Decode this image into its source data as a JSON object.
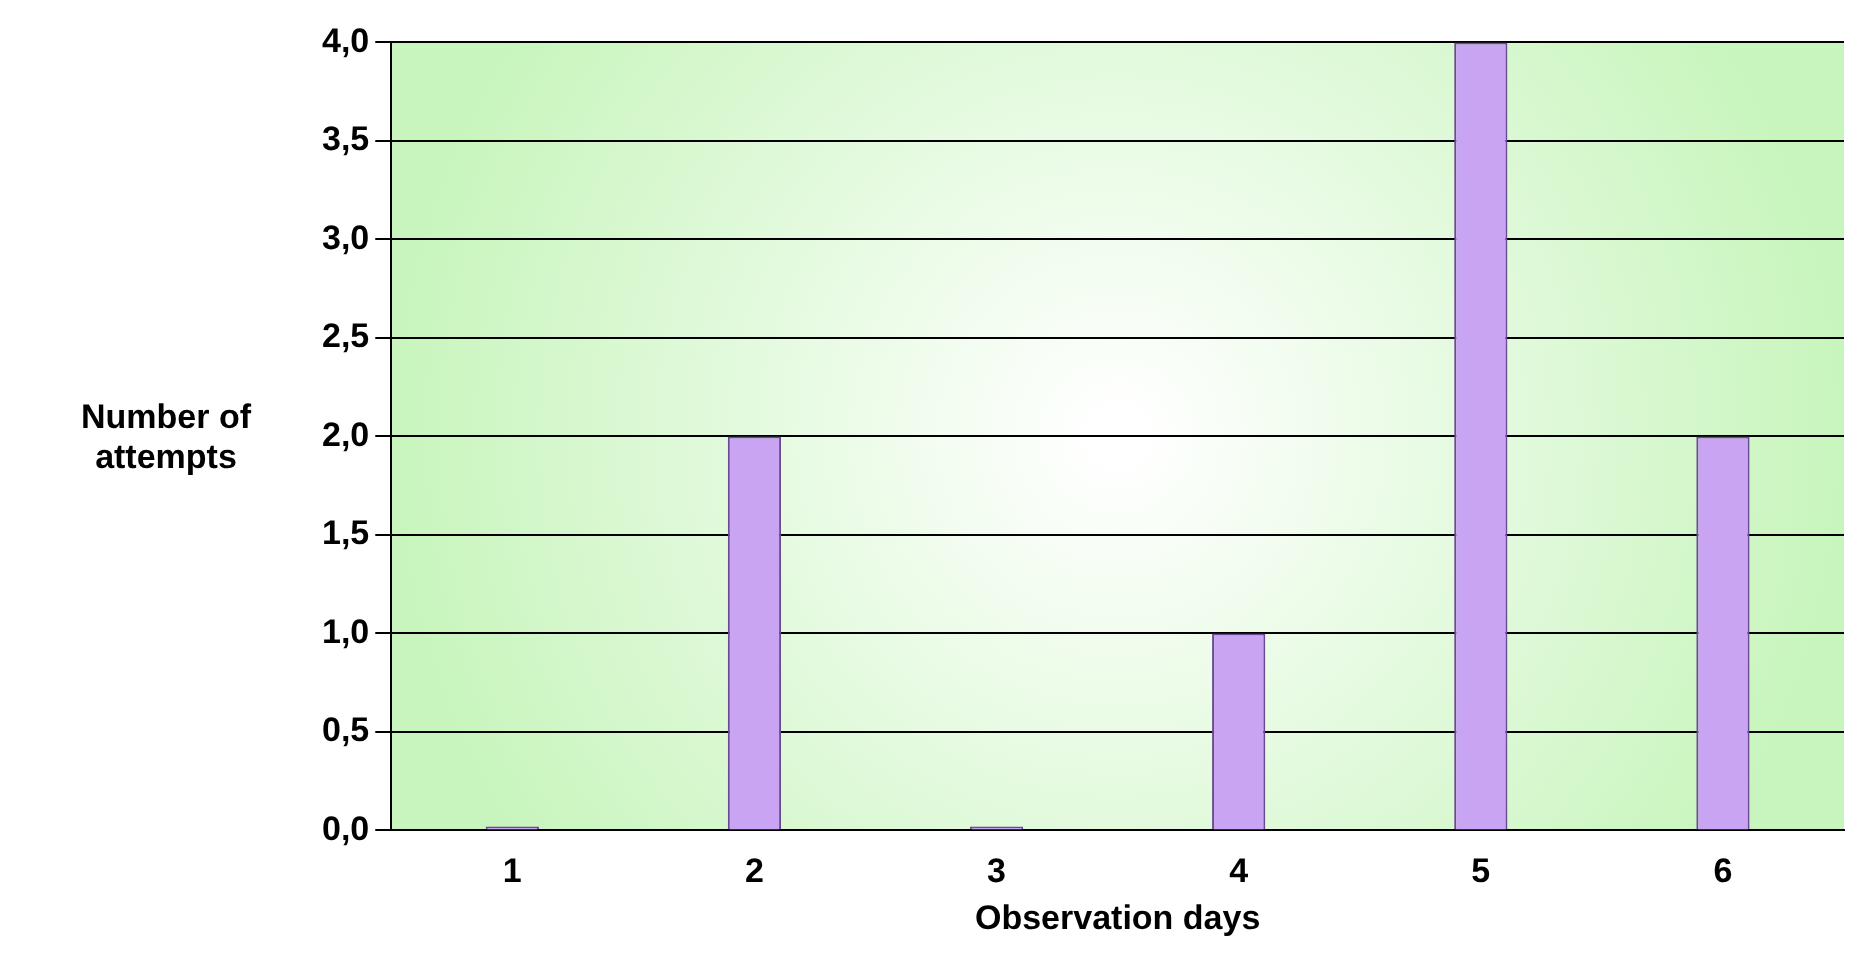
{
  "chart_data": {
    "type": "bar",
    "xlabel": "Observation days",
    "ylabel": "Number of attempts",
    "categories": [
      "1",
      "2",
      "3",
      "4",
      "5",
      "6"
    ],
    "values": [
      0,
      2,
      0,
      1,
      4,
      2
    ],
    "color": "#c9a4f2",
    "ylim": [
      0,
      4
    ],
    "yticks": [
      {
        "value": 0,
        "label": "0,0"
      },
      {
        "value": 0.5,
        "label": "0,5"
      },
      {
        "value": 1,
        "label": "1,0"
      },
      {
        "value": 1.5,
        "label": "1,5"
      },
      {
        "value": 2,
        "label": "2,0"
      },
      {
        "value": 2.5,
        "label": "2,5"
      },
      {
        "value": 3,
        "label": "3,0"
      },
      {
        "value": 3.5,
        "label": "3,5"
      },
      {
        "value": 4,
        "label": "4,0"
      }
    ],
    "grid": "y",
    "legend": false
  }
}
